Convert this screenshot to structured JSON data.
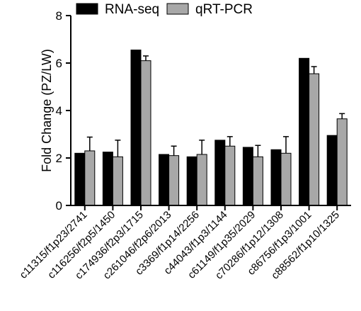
{
  "chart_data": {
    "type": "bar",
    "title": "",
    "xlabel": "",
    "ylabel": "Fold Change (PZ/LW)",
    "ylim": [
      0,
      8
    ],
    "yticks": [
      0,
      2,
      4,
      6,
      8
    ],
    "grid": false,
    "legend_position": "top-left",
    "categories": [
      "c11315/f1p23/2741",
      "c116256/f2p5/1450",
      "c174936/f2p3/1715",
      "c261046/f2p6/2013",
      "c3369/f1p14/2256",
      "c44043/f1p3/1144",
      "c61149/f1p35/2029",
      "c70286/f1p12/1308",
      "c86756/f1p3/1001",
      "c88562/f1p10/1325"
    ],
    "series": [
      {
        "name": "RNA-seq",
        "color": "#000000",
        "values": [
          2.2,
          2.25,
          6.55,
          2.15,
          2.05,
          2.75,
          2.45,
          2.35,
          6.2,
          2.95
        ],
        "errors": [
          0,
          0,
          0,
          0,
          0,
          0,
          0,
          0,
          0,
          0
        ]
      },
      {
        "name": "qRT-PCR",
        "color": "#a8a8a8",
        "values": [
          2.3,
          2.05,
          6.1,
          2.1,
          2.15,
          2.5,
          2.05,
          2.2,
          5.55,
          3.65
        ],
        "errors": [
          0.58,
          0.7,
          0.2,
          0.4,
          0.6,
          0.4,
          0.48,
          0.7,
          0.3,
          0.22
        ]
      }
    ]
  }
}
